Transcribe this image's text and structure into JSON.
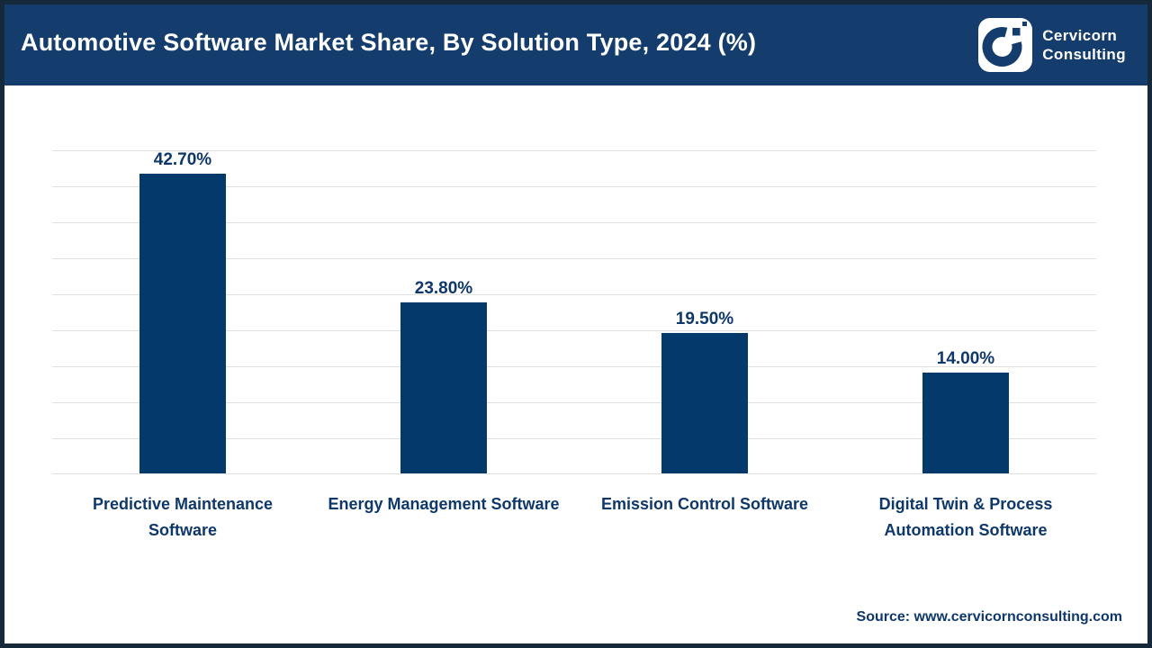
{
  "header": {
    "title": "Automotive Software Market Share, By Solution Type, 2024 (%)",
    "logo": {
      "line1": "Cervicorn",
      "line2": "Consulting"
    }
  },
  "chart_data": {
    "type": "bar",
    "title": "Automotive Software Market Share, By Solution Type, 2024 (%)",
    "categories": [
      "Predictive Maintenance Software",
      "Energy Management Software",
      "Emission Control Software",
      "Digital Twin & Process Automation Software"
    ],
    "tick_labels": [
      "Predictive Maintenance\nSoftware",
      "Energy Management Software",
      "Emission Control Software",
      "Digital Twin & Process\nAutomation Software"
    ],
    "values": [
      42.7,
      23.8,
      19.5,
      14.0
    ],
    "value_labels": [
      "42.70%",
      "23.80%",
      "19.50%",
      "14.00%"
    ],
    "unit": "%",
    "ylim": [
      0,
      45
    ],
    "gridline_interval": 5,
    "grid": "horizontal",
    "legend": "none",
    "bar_color": "#033A6B"
  },
  "footer": {
    "source": "Source: www.cervicornconsulting.com"
  },
  "colors": {
    "header_bg": "#143D6E",
    "frame_border": "#15293B",
    "bar": "#033A6B",
    "text_navy": "#0E386C",
    "gridline": "#E0E0E0",
    "background": "#FFFFFF"
  }
}
